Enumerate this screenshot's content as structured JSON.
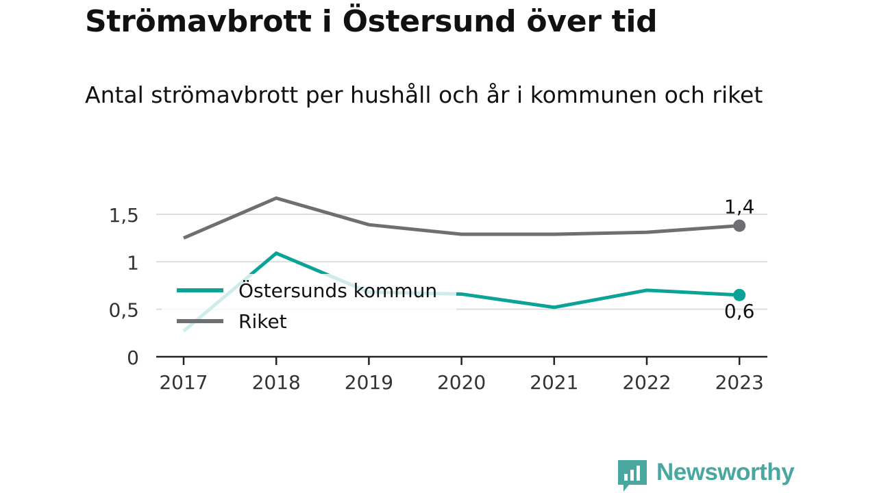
{
  "title": "Strömavbrott i Östersund över tid",
  "subtitle": "Antal strömavbrott per hushåll och år i kommunen och riket",
  "brand": {
    "name": "Newsworthy"
  },
  "colors": {
    "ostersund": "#0aa396",
    "riket": "#6f6e73",
    "grid": "#dddddd",
    "axis": "#222222"
  },
  "chart_data": {
    "type": "line",
    "x": [
      "2017",
      "2018",
      "2019",
      "2020",
      "2021",
      "2022",
      "2023"
    ],
    "series": [
      {
        "name": "Östersunds kommun",
        "values": [
          0.27,
          1.09,
          0.68,
          0.66,
          0.52,
          0.7,
          0.65
        ],
        "end_label": "0,6"
      },
      {
        "name": "Riket",
        "values": [
          1.25,
          1.67,
          1.39,
          1.29,
          1.29,
          1.31,
          1.38
        ],
        "end_label": "1,4"
      }
    ],
    "yticks": [
      {
        "value": 0,
        "label": "0"
      },
      {
        "value": 0.5,
        "label": "0,5"
      },
      {
        "value": 1,
        "label": "1"
      },
      {
        "value": 1.5,
        "label": "1,5"
      }
    ],
    "ylim": [
      0,
      1.8
    ],
    "grid": true,
    "legend": "inside-left"
  }
}
